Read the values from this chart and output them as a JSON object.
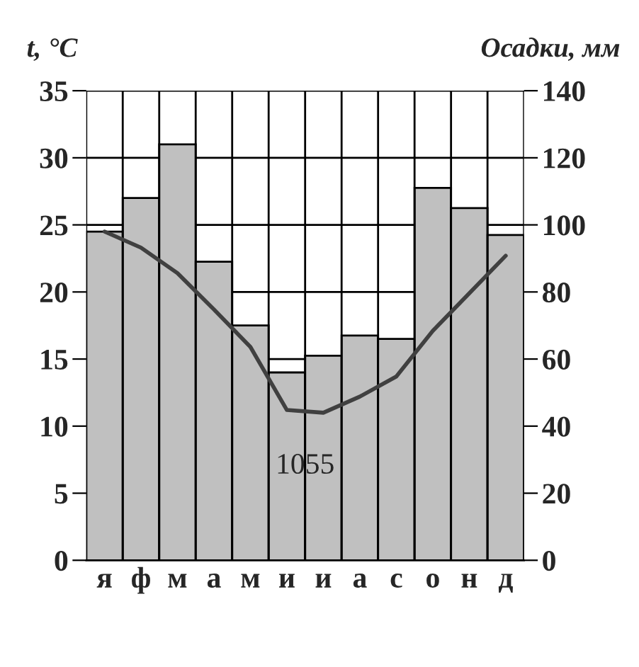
{
  "chart_data": {
    "type": "bar",
    "ylabel": "t, °C",
    "y2label": "Осадки, мм",
    "categories": [
      "я",
      "ф",
      "м",
      "а",
      "м",
      "и",
      "и",
      "а",
      "с",
      "о",
      "н",
      "д"
    ],
    "series": [
      {
        "axis": "y2",
        "color": "#c0c0c0",
        "values": [
          98,
          108,
          124,
          89,
          70,
          56,
          61,
          67,
          66,
          111,
          105,
          97
        ]
      },
      {
        "type": "line",
        "axis": "y",
        "color": "#404040",
        "values": [
          24.5,
          23.3,
          21.4,
          18.7,
          15.9,
          11.2,
          11.0,
          12.2,
          13.7,
          17.1,
          19.9,
          22.7
        ]
      }
    ],
    "ylim": [
      0,
      35
    ],
    "yticks": [
      0,
      5,
      10,
      15,
      20,
      25,
      30,
      35
    ],
    "y2lim": [
      0,
      140
    ],
    "y2ticks": [
      0,
      20,
      40,
      60,
      80,
      100,
      120,
      140
    ],
    "grid": true,
    "annotations": [
      "1055"
    ]
  }
}
